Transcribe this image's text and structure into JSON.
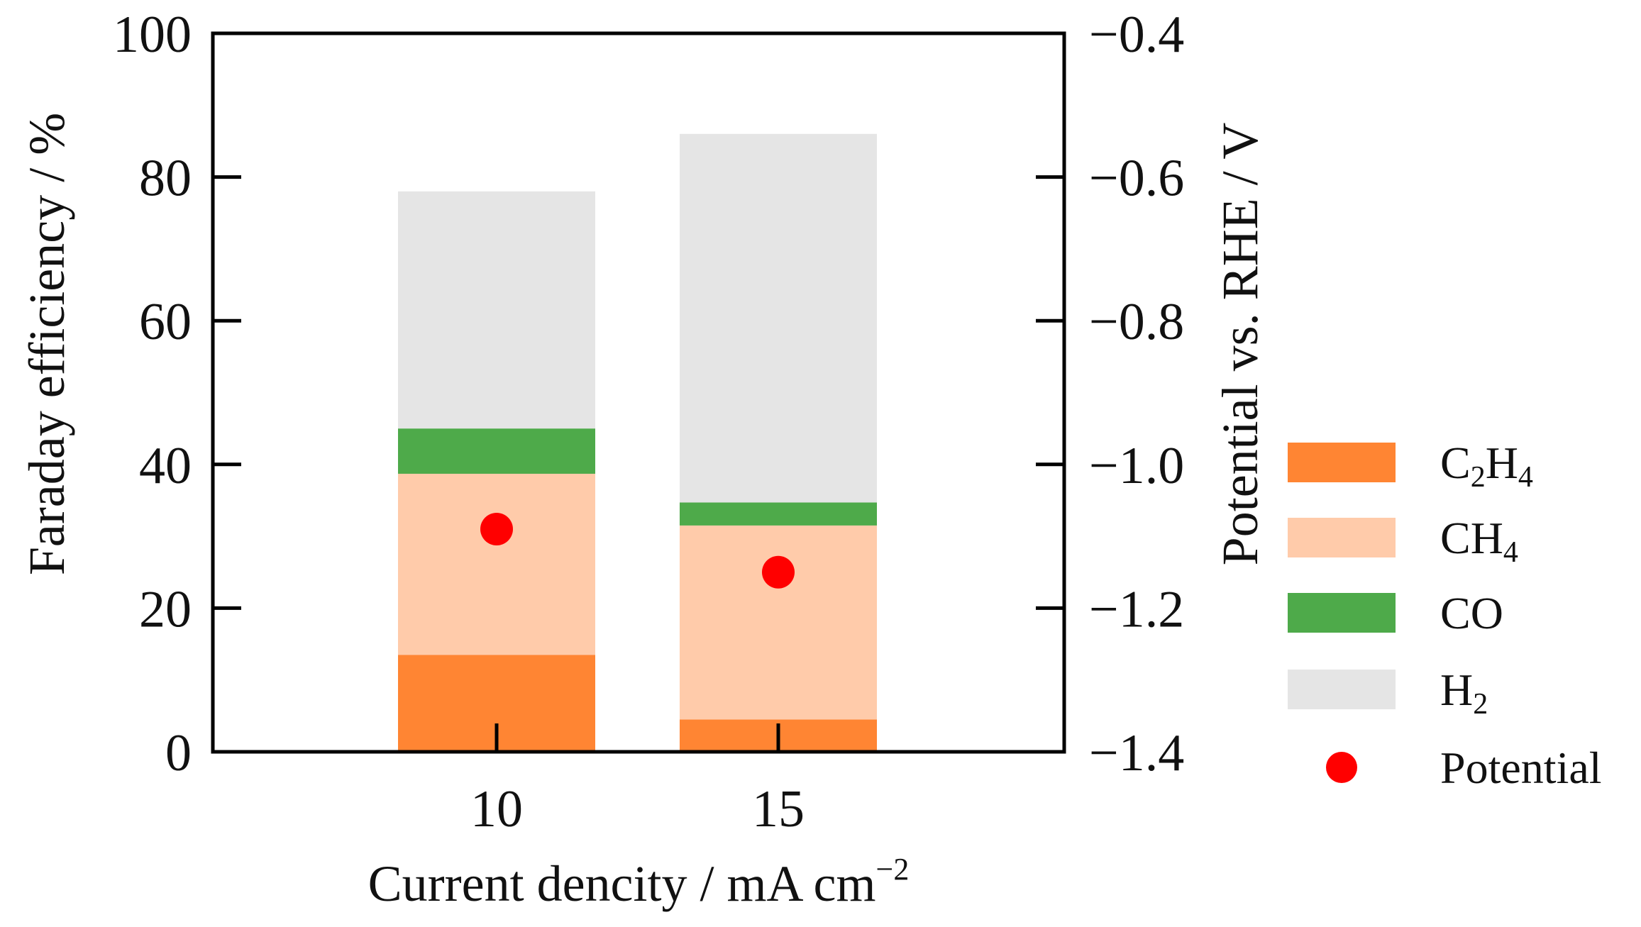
{
  "chart_data": {
    "type": "bar",
    "stacked": true,
    "categories": [
      "10",
      "15"
    ],
    "series": [
      {
        "name": "C₂H₄",
        "label_main": "C",
        "label_sub1": "2",
        "label_mid": "H",
        "label_sub2": "4",
        "color": "#FF8533",
        "values": [
          13.5,
          4.5
        ]
      },
      {
        "name": "CH₄",
        "label_main": "CH",
        "label_sub1": "4",
        "label_mid": "",
        "label_sub2": "",
        "color": "#FFCBAA",
        "values": [
          25.2,
          27.0
        ]
      },
      {
        "name": "CO",
        "label_main": "CO",
        "label_sub1": "",
        "label_mid": "",
        "label_sub2": "",
        "color": "#4EAA4A",
        "values": [
          6.3,
          3.2
        ]
      },
      {
        "name": "H₂",
        "label_main": "H",
        "label_sub1": "2",
        "label_mid": "",
        "label_sub2": "",
        "color": "#E5E5E5",
        "values": [
          33.0,
          51.3
        ]
      }
    ],
    "potential_series": {
      "name": "Potential",
      "color": "#FF0000",
      "values": [
        -1.09,
        -1.15
      ]
    },
    "xlabel_main": "Current dencity / mA cm",
    "xlabel_sup": "−2",
    "ylabel": "Faraday efficiency / %",
    "y2label": "Potential vs. RHE / V",
    "ylim": [
      0,
      100
    ],
    "y2lim": [
      -1.4,
      -0.4
    ],
    "yticks": [
      "0",
      "20",
      "40",
      "60",
      "80",
      "100"
    ],
    "yticks_values": [
      0,
      20,
      40,
      60,
      80,
      100
    ],
    "y2ticks": [
      "−1.4",
      "−1.2",
      "−1.0",
      "−0.8",
      "−0.6",
      "−0.4"
    ],
    "y2ticks_values": [
      -1.4,
      -1.2,
      -1.0,
      -0.8,
      -0.6,
      -0.4
    ],
    "legend_position": "right",
    "grid": false
  }
}
